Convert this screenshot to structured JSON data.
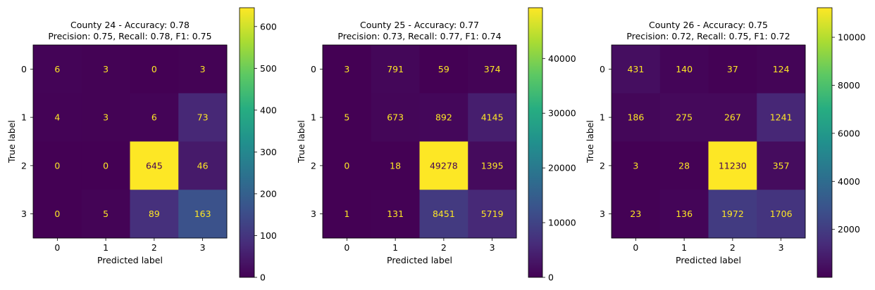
{
  "chart_data": [
    {
      "type": "heatmap",
      "title_line1": "County 24 - Accuracy: 0.78",
      "title_line2": "Precision: 0.75, Recall: 0.78, F1: 0.75",
      "xlabel": "Predicted label",
      "ylabel": "True label",
      "x_categories": [
        "0",
        "1",
        "2",
        "3"
      ],
      "y_categories": [
        "0",
        "1",
        "2",
        "3"
      ],
      "values": [
        [
          6,
          3,
          0,
          3
        ],
        [
          4,
          3,
          6,
          73
        ],
        [
          0,
          0,
          645,
          46
        ],
        [
          0,
          5,
          89,
          163
        ]
      ],
      "colorbar_range": [
        0,
        645
      ],
      "colorbar_ticks": [
        0,
        100,
        200,
        300,
        400,
        500,
        600
      ],
      "colormap": "viridis"
    },
    {
      "type": "heatmap",
      "title_line1": "County 25 - Accuracy: 0.77",
      "title_line2": "Precision: 0.73, Recall: 0.77, F1: 0.74",
      "xlabel": "Predicted label",
      "ylabel": "True label",
      "x_categories": [
        "0",
        "1",
        "2",
        "3"
      ],
      "y_categories": [
        "0",
        "1",
        "2",
        "3"
      ],
      "values": [
        [
          3,
          791,
          59,
          374
        ],
        [
          5,
          673,
          892,
          4145
        ],
        [
          0,
          18,
          49278,
          1395
        ],
        [
          1,
          131,
          8451,
          5719
        ]
      ],
      "colorbar_range": [
        0,
        49278
      ],
      "colorbar_ticks": [
        0,
        10000,
        20000,
        30000,
        40000
      ],
      "colormap": "viridis"
    },
    {
      "type": "heatmap",
      "title_line1": "County 26 - Accuracy: 0.75",
      "title_line2": "Precision: 0.72, Recall: 0.75, F1: 0.72",
      "xlabel": "Predicted label",
      "ylabel": "True label",
      "x_categories": [
        "0",
        "1",
        "2",
        "3"
      ],
      "y_categories": [
        "0",
        "1",
        "2",
        "3"
      ],
      "values": [
        [
          431,
          140,
          37,
          124
        ],
        [
          186,
          275,
          267,
          1241
        ],
        [
          3,
          28,
          11230,
          357
        ],
        [
          23,
          136,
          1972,
          1706
        ]
      ],
      "colorbar_range": [
        3,
        11230
      ],
      "colorbar_ticks": [
        2000,
        4000,
        6000,
        8000,
        10000
      ],
      "colormap": "viridis"
    }
  ]
}
